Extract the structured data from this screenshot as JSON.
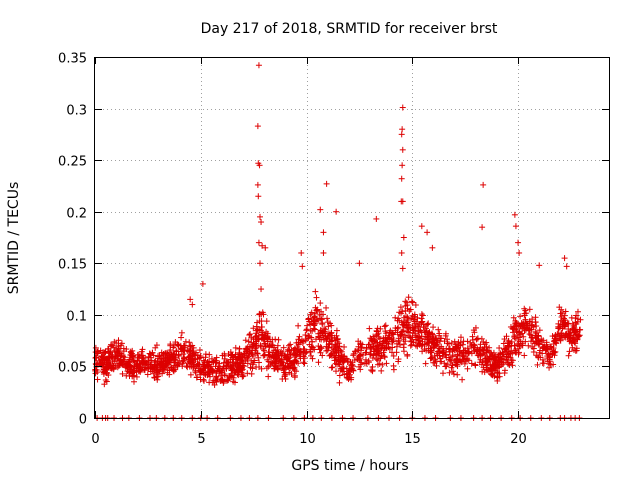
{
  "chart_data": {
    "type": "scatter",
    "title": "Day 217 of 2018, SRMTID for receiver brst",
    "xlabel": "GPS time / hours",
    "ylabel": "SRMTID / TECUs",
    "xlim": [
      0,
      24.3
    ],
    "ylim": [
      0,
      0.35
    ],
    "xticks": [
      0,
      5,
      10,
      15,
      20
    ],
    "xtick_labels": [
      "0",
      "5",
      "10",
      "15",
      "20"
    ],
    "yticks": [
      0,
      0.05,
      0.1,
      0.15,
      0.2,
      0.25,
      0.3,
      0.35
    ],
    "ytick_labels": [
      "0",
      "0.05",
      "0.1",
      "0.15",
      "0.2",
      "0.25",
      "0.3",
      "0.35"
    ],
    "grid": true,
    "marker": "+",
    "color": "#dd0000",
    "series": [
      {
        "name": "SRMTID",
        "envelope": {
          "hours": [
            0,
            0.5,
            1,
            1.5,
            2,
            2.5,
            3,
            3.5,
            4,
            4.5,
            5,
            5.5,
            6,
            6.5,
            7,
            7.5,
            7.8,
            8,
            8.5,
            9,
            9.5,
            10,
            10.5,
            11,
            11.5,
            12,
            12.5,
            13,
            13.5,
            14,
            14.5,
            15,
            15.5,
            16,
            16.5,
            17,
            17.5,
            18,
            18.5,
            19,
            19.5,
            20,
            20.5,
            21,
            21.5,
            22,
            22.5,
            23
          ],
          "typical": [
            0.055,
            0.05,
            0.06,
            0.055,
            0.05,
            0.055,
            0.05,
            0.055,
            0.065,
            0.06,
            0.05,
            0.048,
            0.045,
            0.05,
            0.055,
            0.07,
            0.085,
            0.075,
            0.06,
            0.055,
            0.06,
            0.075,
            0.09,
            0.08,
            0.06,
            0.045,
            0.06,
            0.065,
            0.07,
            0.075,
            0.085,
            0.09,
            0.08,
            0.07,
            0.065,
            0.06,
            0.06,
            0.07,
            0.055,
            0.05,
            0.065,
            0.08,
            0.09,
            0.07,
            0.06,
            0.09,
            0.08,
            0.085
          ],
          "spread": [
            0.02,
            0.02,
            0.02,
            0.02,
            0.018,
            0.02,
            0.02,
            0.02,
            0.022,
            0.022,
            0.02,
            0.018,
            0.018,
            0.02,
            0.022,
            0.03,
            0.04,
            0.03,
            0.022,
            0.02,
            0.025,
            0.03,
            0.035,
            0.03,
            0.025,
            0.02,
            0.025,
            0.025,
            0.025,
            0.028,
            0.035,
            0.03,
            0.028,
            0.025,
            0.022,
            0.022,
            0.022,
            0.028,
            0.02,
            0.02,
            0.025,
            0.03,
            0.03,
            0.025,
            0.02,
            0.025,
            0.025,
            0.02
          ]
        },
        "peaks": [
          [
            7.75,
            0.342
          ],
          [
            7.7,
            0.283
          ],
          [
            7.72,
            0.247
          ],
          [
            7.78,
            0.245
          ],
          [
            7.7,
            0.226
          ],
          [
            7.72,
            0.215
          ],
          [
            7.8,
            0.195
          ],
          [
            7.85,
            0.19
          ],
          [
            7.75,
            0.17
          ],
          [
            7.9,
            0.167
          ],
          [
            8.05,
            0.165
          ],
          [
            7.8,
            0.15
          ],
          [
            7.85,
            0.125
          ],
          [
            14.55,
            0.301
          ],
          [
            14.52,
            0.28
          ],
          [
            14.5,
            0.275
          ],
          [
            14.55,
            0.26
          ],
          [
            14.52,
            0.245
          ],
          [
            14.5,
            0.232
          ],
          [
            14.55,
            0.21
          ],
          [
            14.48,
            0.21
          ],
          [
            14.6,
            0.175
          ],
          [
            14.5,
            0.16
          ],
          [
            14.55,
            0.145
          ],
          [
            10.95,
            0.227
          ],
          [
            10.65,
            0.202
          ],
          [
            11.4,
            0.2
          ],
          [
            10.8,
            0.18
          ],
          [
            10.8,
            0.16
          ],
          [
            13.3,
            0.193
          ],
          [
            15.45,
            0.186
          ],
          [
            15.95,
            0.165
          ],
          [
            15.7,
            0.18
          ],
          [
            18.35,
            0.226
          ],
          [
            18.3,
            0.185
          ],
          [
            19.85,
            0.197
          ],
          [
            19.9,
            0.186
          ],
          [
            20.0,
            0.17
          ],
          [
            20.05,
            0.16
          ],
          [
            22.2,
            0.155
          ],
          [
            22.3,
            0.147
          ],
          [
            21.0,
            0.148
          ],
          [
            9.75,
            0.16
          ],
          [
            9.8,
            0.147
          ],
          [
            12.5,
            0.15
          ],
          [
            5.1,
            0.13
          ],
          [
            4.5,
            0.115
          ],
          [
            4.6,
            0.11
          ]
        ],
        "zero_hours": [
          0.1,
          0.35,
          0.5,
          0.6,
          0.9,
          1.3,
          1.6,
          2.1,
          2.6,
          2.9,
          3.3,
          3.7,
          4.1,
          4.6,
          5.0,
          5.3,
          5.8,
          6.4,
          6.9,
          7.3,
          7.7,
          8.2,
          8.9,
          9.4,
          9.9,
          10.3,
          10.7,
          11.2,
          11.7,
          12.2,
          12.9,
          13.4,
          13.9,
          14.4,
          15.0,
          15.6,
          16.1,
          16.8,
          17.3,
          17.9,
          18.3,
          18.7,
          19.2,
          19.7,
          20.1,
          20.6,
          21.1,
          21.5,
          22.0,
          22.2,
          22.5,
          22.7,
          22.9
        ]
      }
    ]
  }
}
